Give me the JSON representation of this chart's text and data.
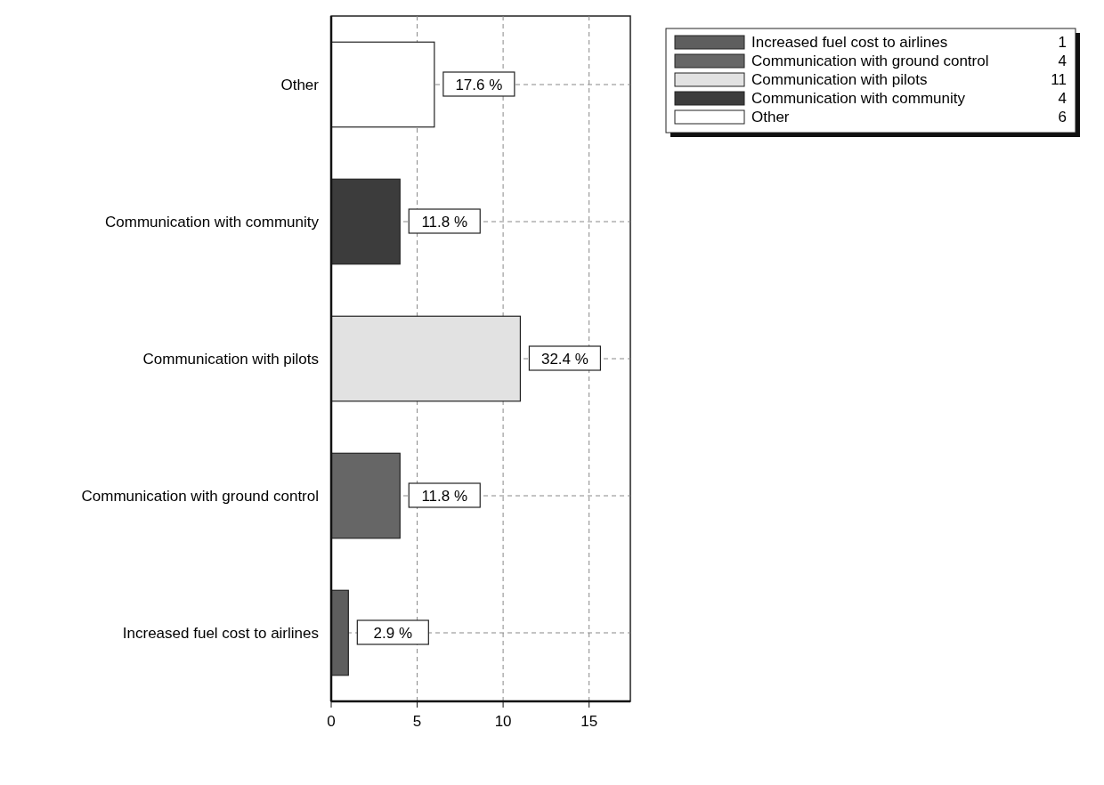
{
  "chart_data": {
    "type": "bar",
    "orientation": "horizontal",
    "stacked": true,
    "categories": [
      "Other",
      "Communication with community",
      "Communication with pilots",
      "Communication with ground control",
      "Increased fuel cost to airlines"
    ],
    "series": [
      {
        "name": "Increased fuel cost to airlines",
        "color": "#5e5e5e",
        "values": [
          null,
          null,
          null,
          null,
          1
        ]
      },
      {
        "name": "Communication with ground control",
        "color": "#666666",
        "values": [
          null,
          null,
          null,
          4,
          null
        ]
      },
      {
        "name": "Communication with pilots",
        "color": "#e2e2e2",
        "values": [
          null,
          null,
          11,
          null,
          null
        ]
      },
      {
        "name": "Communication with community",
        "color": "#3c3c3c",
        "values": [
          null,
          4,
          null,
          null,
          null
        ]
      },
      {
        "name": "Other",
        "color": "#ffffff",
        "values": [
          6,
          null,
          null,
          null,
          null
        ]
      }
    ],
    "annotations": [
      {
        "text": "17.6 %",
        "x": 6,
        "y": "Other"
      },
      {
        "text": "11.8 %",
        "x": 4,
        "y": "Communication with community"
      },
      {
        "text": "32.4 %",
        "x": 11,
        "y": "Communication with pilots"
      },
      {
        "text": "11.8 %",
        "x": 4,
        "y": "Communication with ground control"
      },
      {
        "text": "2.9 %",
        "x": 1,
        "y": "Increased fuel cost to airlines"
      },
      "1",
      "4",
      "11",
      "4",
      "6"
    ],
    "xlim": [
      0,
      17.4
    ],
    "xticks": [
      0,
      5,
      10,
      15
    ],
    "grid": true,
    "legend": "top right"
  }
}
